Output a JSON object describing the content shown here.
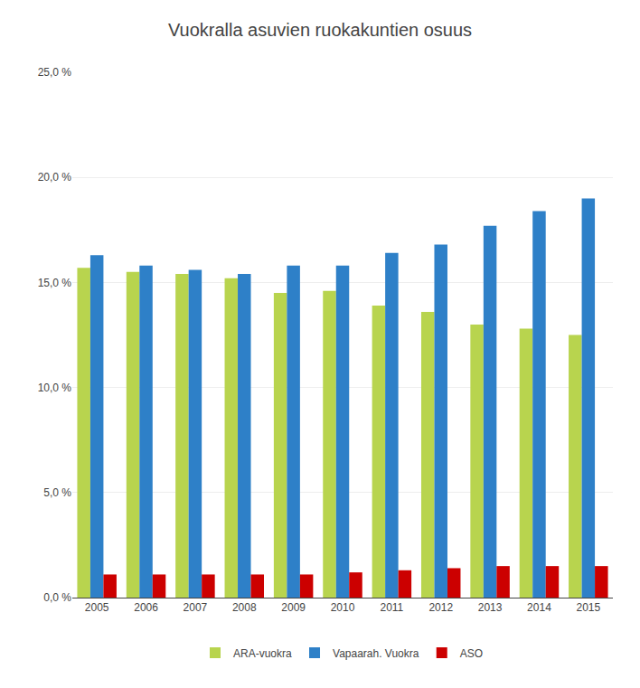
{
  "chart_data": {
    "type": "bar",
    "title": "Vuokralla asuvien ruokakuntien osuus",
    "categories": [
      "2005",
      "2006",
      "2007",
      "2008",
      "2009",
      "2010",
      "2011",
      "2012",
      "2013",
      "2014",
      "2015"
    ],
    "series": [
      {
        "name": "ARA-vuokra",
        "color": "#b8d44e",
        "values": [
          15.7,
          15.5,
          15.4,
          15.2,
          14.5,
          14.6,
          13.9,
          13.6,
          13.0,
          12.8,
          12.5
        ]
      },
      {
        "name": "Vapaarah. Vuokra",
        "color": "#2e80c8",
        "values": [
          16.3,
          15.8,
          15.6,
          15.4,
          15.8,
          15.8,
          16.4,
          16.8,
          17.7,
          18.4,
          19.0
        ]
      },
      {
        "name": "ASO",
        "color": "#cc0000",
        "values": [
          1.1,
          1.1,
          1.1,
          1.1,
          1.1,
          1.2,
          1.3,
          1.4,
          1.5,
          1.5,
          1.5
        ]
      }
    ],
    "ylim": [
      0,
      25
    ],
    "yticks": [
      {
        "value": 0,
        "label": "0,0 %"
      },
      {
        "value": 5,
        "label": "5,0 %"
      },
      {
        "value": 10,
        "label": "10,0 %"
      },
      {
        "value": 15,
        "label": "15,0 %"
      },
      {
        "value": 20,
        "label": "20,0 %"
      },
      {
        "value": 25,
        "label": "25,0 %"
      }
    ],
    "grid": true,
    "legend": "bottom"
  }
}
